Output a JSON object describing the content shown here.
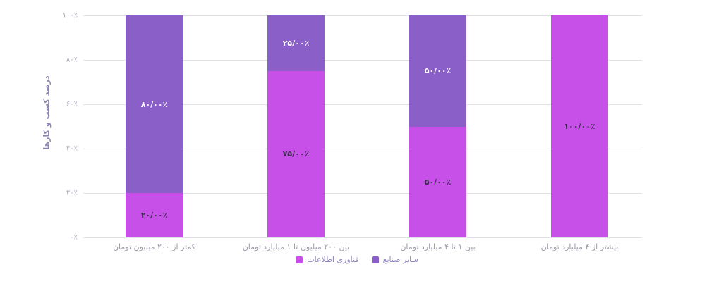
{
  "chart_data": {
    "type": "bar",
    "stacked": true,
    "rtl": true,
    "ylabel": "درصد کسب و کارها",
    "ylim": [
      0,
      100
    ],
    "grid": true,
    "legend_position": "bottom",
    "yticks": [
      {
        "value": 0,
        "label": "۰٪"
      },
      {
        "value": 20,
        "label": "۲۰٪"
      },
      {
        "value": 40,
        "label": "۴۰٪"
      },
      {
        "value": 60,
        "label": "۶۰٪"
      },
      {
        "value": 80,
        "label": "۸۰٪"
      },
      {
        "value": 100,
        "label": "۱۰۰٪"
      }
    ],
    "categories": [
      "کمتر از ۲۰۰ میلیون تومان",
      "بین ۲۰۰ میلیون تا ۱ میلیارد تومان",
      "بین ۱ تا ۴ میلیارد تومان",
      "بیشتر از ۴ میلیارد تومان"
    ],
    "series": [
      {
        "name": "فناوری اطلاعات",
        "color": "#c750e8",
        "label_color": "#3a2b4d",
        "position": "bottom",
        "values": [
          20,
          75,
          50,
          100
        ],
        "value_labels": [
          "۲۰/۰۰٪",
          "۷۵/۰۰٪",
          "۵۰/۰۰٪",
          "۱۰۰/۰۰٪"
        ]
      },
      {
        "name": "سایر صنایع",
        "color": "#8a5fc8",
        "label_color": "#ffffff",
        "position": "top",
        "values": [
          80,
          25,
          50,
          0
        ],
        "value_labels": [
          "۸۰/۰۰٪",
          "۲۵/۰۰٪",
          "۵۰/۰۰٪",
          ""
        ]
      }
    ]
  },
  "colors": {
    "background": "#ffffff",
    "gridline": "#e3e1e8",
    "tick_label": "#a19cb8",
    "axis_title": "#8f84b0",
    "category_label": "#9e98a8",
    "legend_label": "#8d81bd"
  }
}
